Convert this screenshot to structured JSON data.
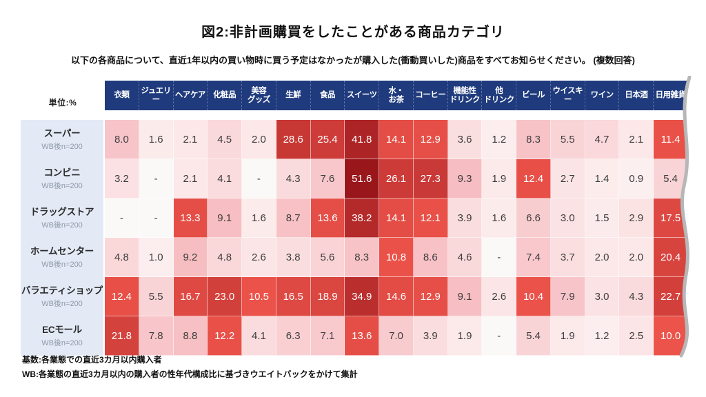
{
  "title": "図2:非計画購買をしたことがある商品カテゴリ",
  "subtitle": "以下の各商品について、直近1年以内の買い物時に買う予定はなかったが購入した(衝動買いした)商品をすべてお知らせください。 (複数回答)",
  "unit_label": "単位:%",
  "notes": [
    "基数:各業態での直近3カ月以内購入者",
    "WB:各業態の直近3カ月以内の購入者の性年代構成比に基づきウエイトバックをかけて集計"
  ],
  "colors": {
    "header_bg": "#1f3b7d",
    "label_panel_bg": "#e3eaf6",
    "scale_low": "#fdf4f4",
    "scale_mid": "#f6b9be",
    "scale_red_start": "#ec534a",
    "scale_red_end": "#98151b",
    "null_bg": "#fbf8f8",
    "dark_text": "#3d3d3d",
    "white_text": "#ffffff",
    "wave_stroke": "#b7b7b7"
  },
  "chart_data": {
    "type": "heatmap",
    "unit": "%",
    "null_display": "-",
    "white_text_threshold": 10,
    "columns": [
      "衣類",
      "ジュエリー",
      "ヘアケア",
      "化粧品",
      "美容\nグッズ",
      "生鮮",
      "食品",
      "スイーツ",
      "水・\nお茶",
      "コーヒー",
      "機能性\nドリンク",
      "他\nドリンク",
      "ビール",
      "ウイスキー",
      "ワイン",
      "日本酒",
      "日用雑貨"
    ],
    "rows": [
      {
        "label": "スーパー",
        "sub": "WB後n=200",
        "values": [
          8.0,
          1.6,
          2.1,
          4.5,
          2.0,
          28.6,
          25.4,
          41.8,
          14.1,
          12.9,
          3.6,
          1.2,
          8.3,
          5.5,
          4.7,
          2.1,
          11.4
        ]
      },
      {
        "label": "コンビニ",
        "sub": "WB後n=200",
        "values": [
          3.2,
          null,
          2.1,
          4.1,
          null,
          4.3,
          7.6,
          51.6,
          26.1,
          27.3,
          9.3,
          1.9,
          12.4,
          2.7,
          1.4,
          0.9,
          5.4
        ]
      },
      {
        "label": "ドラッグストア",
        "sub": "WB後n=200",
        "values": [
          null,
          null,
          13.3,
          9.1,
          1.6,
          8.7,
          13.6,
          38.2,
          14.1,
          12.1,
          3.9,
          1.6,
          6.6,
          3.0,
          1.5,
          2.9,
          17.5
        ]
      },
      {
        "label": "ホームセンター",
        "sub": "WB後n=200",
        "values": [
          4.8,
          1.0,
          9.2,
          4.8,
          2.6,
          3.8,
          5.6,
          8.3,
          10.8,
          8.6,
          4.6,
          null,
          7.4,
          3.7,
          2.0,
          2.0,
          20.4
        ]
      },
      {
        "label": "バラエティショップ",
        "sub": "WB後n=200",
        "values": [
          12.4,
          5.5,
          16.7,
          23.0,
          10.5,
          16.5,
          18.9,
          34.9,
          14.6,
          12.9,
          9.1,
          2.6,
          10.4,
          7.9,
          3.0,
          4.3,
          22.7
        ]
      },
      {
        "label": "ECモール",
        "sub": "WB後n=200",
        "values": [
          21.8,
          7.8,
          8.8,
          12.2,
          4.1,
          6.3,
          7.1,
          13.6,
          7.0,
          3.9,
          1.9,
          null,
          5.4,
          1.9,
          1.2,
          2.5,
          10.0
        ]
      }
    ]
  }
}
